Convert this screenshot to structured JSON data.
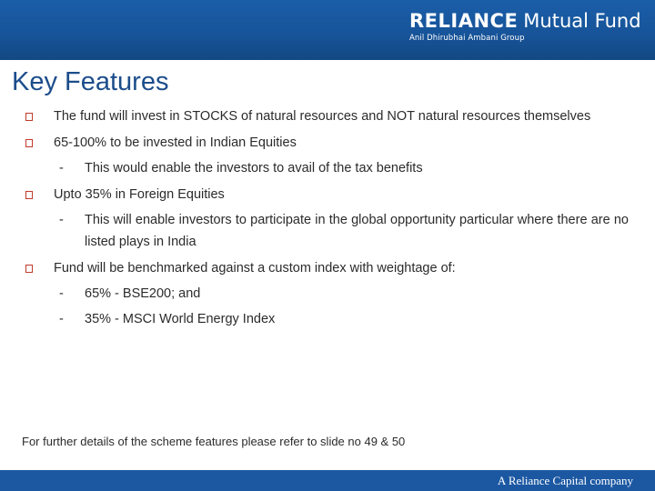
{
  "header": {
    "brand_name": "RELIANCE",
    "brand_product": "Mutual Fund",
    "brand_group": "Anil Dhirubhai Ambani Group",
    "band_color": "#17549a"
  },
  "title": "Key Features",
  "bullets": [
    {
      "text": "The fund will invest in STOCKS of natural resources and NOT natural resources themselves"
    },
    {
      "text": "65-100% to be invested in Indian Equities",
      "sub": [
        "This would enable the investors to avail of the tax benefits"
      ]
    },
    {
      "text": "Upto 35% in Foreign Equities",
      "sub": [
        "This will enable investors to participate in the global opportunity particular where there are no listed plays in India"
      ]
    },
    {
      "text": "Fund will be benchmarked against a custom index with weightage of:",
      "sub": [
        "65% - BSE200; and",
        "35% - MSCI World Energy Index"
      ]
    }
  ],
  "sub_marker": "-",
  "footnote": "For further details of the scheme features please refer to slide no 49 & 50",
  "footer": {
    "text": "A Reliance Capital company"
  },
  "colors": {
    "title": "#1c4d8b",
    "bullet_marker": "#c0392b",
    "footer_band": "#1c58a2"
  }
}
